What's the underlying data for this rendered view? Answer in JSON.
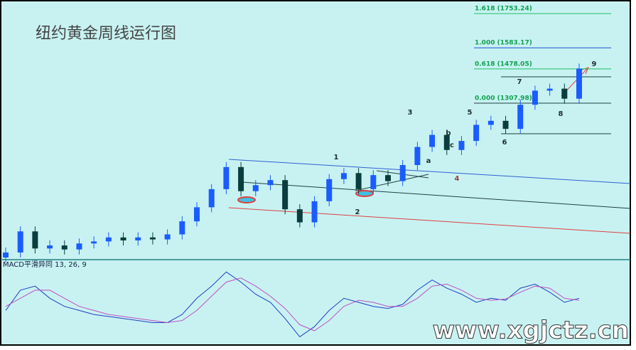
{
  "chart_data": {
    "type": "candlestick",
    "title": "纽约黄金周线运行图",
    "up_color": "#1a5cff",
    "down_color": "#0a3d3d",
    "ylim": [
      540,
      1821
    ],
    "open": [
      540,
      565,
      670,
      585,
      600,
      580,
      610,
      620,
      640,
      625,
      640,
      630,
      655,
      720,
      790,
      880,
      990,
      870,
      900,
      925,
      780,
      715,
      820,
      930,
      960,
      880,
      950,
      920,
      1000,
      1090,
      1150,
      1075,
      1120,
      1200,
      1220,
      1180,
      1300,
      1370,
      1380,
      1330
    ],
    "high": [
      590,
      695,
      695,
      625,
      625,
      635,
      645,
      665,
      665,
      665,
      665,
      680,
      745,
      815,
      905,
      1015,
      1015,
      925,
      950,
      950,
      805,
      845,
      955,
      985,
      985,
      975,
      975,
      1025,
      1115,
      1175,
      1175,
      1145,
      1225,
      1245,
      1245,
      1325,
      1395,
      1405,
      1405,
      1505
    ],
    "low": [
      515,
      540,
      560,
      560,
      555,
      555,
      585,
      595,
      600,
      600,
      605,
      605,
      630,
      695,
      765,
      855,
      845,
      845,
      875,
      755,
      690,
      690,
      795,
      905,
      855,
      855,
      895,
      895,
      975,
      1065,
      1050,
      1050,
      1095,
      1175,
      1155,
      1155,
      1275,
      1345,
      1305,
      1305
    ],
    "close": [
      565,
      670,
      585,
      600,
      580,
      610,
      620,
      640,
      625,
      640,
      630,
      655,
      720,
      790,
      880,
      990,
      870,
      900,
      925,
      780,
      715,
      820,
      930,
      960,
      880,
      950,
      920,
      1000,
      1090,
      1150,
      1075,
      1120,
      1200,
      1220,
      1180,
      1300,
      1370,
      1380,
      1330,
      1480
    ],
    "fib_levels": [
      {
        "label": "1.618 (1753.24)",
        "value": 1753.24,
        "color": "#20c060"
      },
      {
        "label": "1.000 (1583.17)",
        "value": 1583.17,
        "color": "#2050d0"
      },
      {
        "label": "0.618 (1478.05)",
        "value": 1478.05,
        "color": "#20c060"
      },
      {
        "label": "0.000 (1307.98)",
        "value": 1307.98,
        "color": "#204040"
      }
    ],
    "annotations": [
      "1",
      "2",
      "3",
      "4",
      "5",
      "a",
      "b",
      "c",
      "6",
      "7",
      "8",
      "9"
    ],
    "macd": {
      "label": "MACD平滑异同 13, 26, 9",
      "ylim": [
        -1,
        1
      ],
      "series": [
        {
          "color": "#2040c0",
          "values": [
            -0.2,
            0.3,
            0.4,
            0.1,
            -0.1,
            -0.2,
            -0.3,
            -0.35,
            -0.4,
            -0.45,
            -0.5,
            -0.5,
            -0.3,
            0.1,
            0.4,
            0.75,
            0.5,
            0.2,
            0.0,
            -0.4,
            -0.85,
            -0.6,
            -0.2,
            0.1,
            0.0,
            -0.1,
            -0.15,
            -0.05,
            0.3,
            0.55,
            0.35,
            0.2,
            0.0,
            0.1,
            0.05,
            0.35,
            0.45,
            0.25,
            0.0,
            0.1
          ]
        },
        {
          "color": "#c050c0",
          "values": [
            -0.1,
            0.1,
            0.3,
            0.3,
            0.1,
            -0.1,
            -0.2,
            -0.3,
            -0.35,
            -0.4,
            -0.45,
            -0.5,
            -0.45,
            -0.2,
            0.15,
            0.5,
            0.6,
            0.4,
            0.15,
            -0.15,
            -0.55,
            -0.7,
            -0.45,
            -0.1,
            0.05,
            0.0,
            -0.1,
            -0.1,
            0.1,
            0.4,
            0.45,
            0.3,
            0.1,
            0.05,
            0.08,
            0.25,
            0.4,
            0.35,
            0.1,
            0.05
          ]
        }
      ]
    },
    "watermark": "www.xgjctz.cn"
  }
}
